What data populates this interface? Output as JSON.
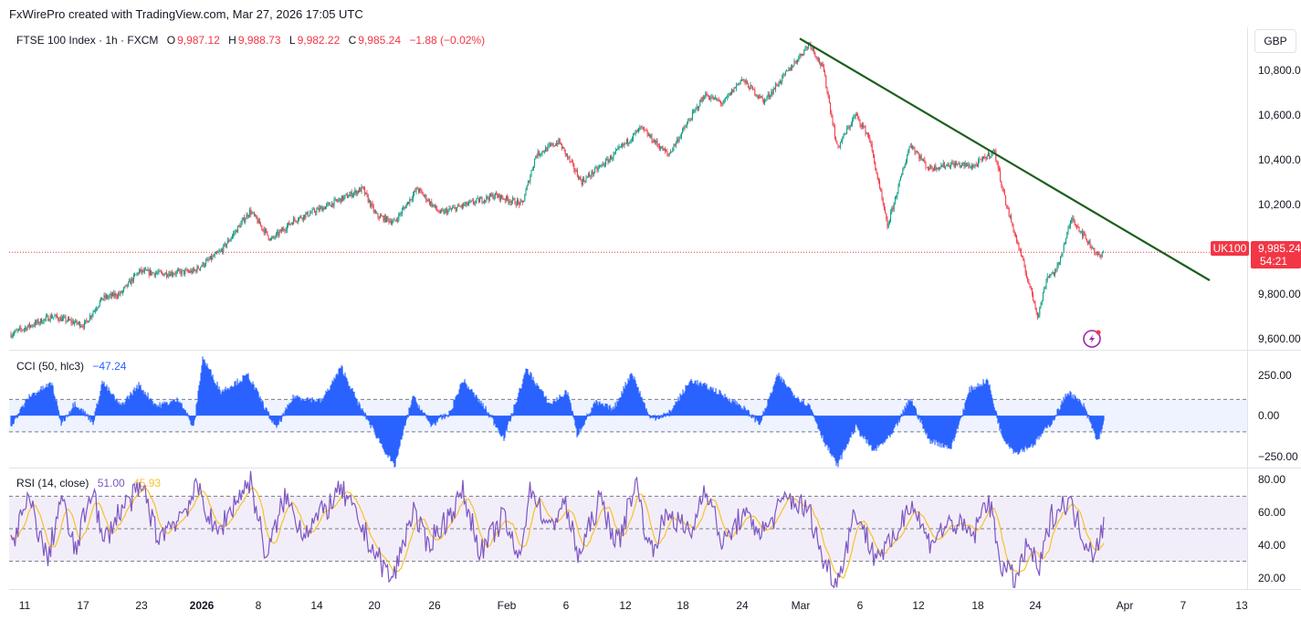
{
  "attribution": "FxWirePro created with TradingView.com, Mar 27, 2026 17:05 UTC",
  "legend": {
    "symbol": "FTSE 100 Index · 1h · FXCM",
    "o_label": "O",
    "o_value": "9,987.12",
    "h_label": "H",
    "h_value": "9,988.73",
    "l_label": "L",
    "l_value": "9,982.22",
    "c_label": "C",
    "c_value": "9,985.24",
    "change": "−1.88 (−0.02%)"
  },
  "currency_button": "GBP",
  "price_tag": {
    "symbol": "UK100",
    "price": "9,985.24",
    "countdown": "54:21"
  },
  "cci": {
    "label": "CCI (50, hlc3)",
    "value": "−47.24"
  },
  "rsi": {
    "label": "RSI (14, close)",
    "value": "51.00",
    "ma_value": "45.93"
  },
  "colors": {
    "up": "#089981",
    "down": "#f23645",
    "trendline": "#1e5e1e",
    "cci": "#2962ff",
    "rsi": "#7e57c2",
    "rsi_ma": "#fbc02d",
    "neutral_text": "#2962ff"
  },
  "icons": [
    "lightning-icon"
  ],
  "chart_data": [
    {
      "type": "candlestick",
      "name": "FTSE 100 Index",
      "ylim": [
        9550,
        10990
      ],
      "yticks": [
        "10,800.00",
        "10,600.00",
        "10,400.00",
        "10,200.00",
        "9,800.00",
        "9,600.00"
      ],
      "ytick_values": [
        10800,
        10600,
        10400,
        10200,
        9800,
        9600
      ],
      "last_price": 9985.24,
      "xticks": [
        "11",
        "17",
        "23",
        "2026",
        "8",
        "14",
        "20",
        "26",
        "Feb",
        "6",
        "12",
        "18",
        "24",
        "Mar",
        "6",
        "12",
        "18",
        "24",
        "Apr",
        "7",
        "13"
      ],
      "trendline": {
        "from": {
          "x": "Mar 1",
          "y": 10940
        },
        "to": {
          "x": "Apr 8",
          "y": 9860
        }
      },
      "path": [
        [
          0,
          9620
        ],
        [
          45,
          9700
        ],
        [
          80,
          9660
        ],
        [
          100,
          9780
        ],
        [
          120,
          9800
        ],
        [
          140,
          9900
        ],
        [
          165,
          9890
        ],
        [
          200,
          9900
        ],
        [
          230,
          9990
        ],
        [
          262,
          10170
        ],
        [
          285,
          10040
        ],
        [
          310,
          10130
        ],
        [
          345,
          10190
        ],
        [
          385,
          10270
        ],
        [
          400,
          10150
        ],
        [
          420,
          10120
        ],
        [
          445,
          10270
        ],
        [
          470,
          10160
        ],
        [
          500,
          10200
        ],
        [
          530,
          10240
        ],
        [
          560,
          10200
        ],
        [
          575,
          10420
        ],
        [
          600,
          10480
        ],
        [
          625,
          10300
        ],
        [
          655,
          10400
        ],
        [
          690,
          10540
        ],
        [
          720,
          10420
        ],
        [
          760,
          10690
        ],
        [
          780,
          10650
        ],
        [
          800,
          10760
        ],
        [
          825,
          10660
        ],
        [
          875,
          10920
        ],
        [
          890,
          10800
        ],
        [
          905,
          10450
        ],
        [
          925,
          10600
        ],
        [
          940,
          10500
        ],
        [
          960,
          10100
        ],
        [
          985,
          10470
        ],
        [
          1005,
          10360
        ],
        [
          1030,
          10380
        ],
        [
          1055,
          10370
        ],
        [
          1077,
          10440
        ],
        [
          1090,
          10200
        ],
        [
          1105,
          9990
        ],
        [
          1125,
          9700
        ],
        [
          1135,
          9880
        ],
        [
          1145,
          9900
        ],
        [
          1162,
          10140
        ],
        [
          1180,
          10030
        ],
        [
          1193,
          9960
        ],
        [
          1197,
          9985
        ]
      ]
    },
    {
      "type": "area",
      "name": "CCI (50, hlc3)",
      "ylim": [
        -320,
        400
      ],
      "yticks": [
        "250.00",
        "0.00",
        "−250.00"
      ],
      "ytick_values": [
        250,
        0,
        -250
      ],
      "bands": [
        100,
        -100
      ],
      "last_value": -47.24,
      "path": [
        [
          0,
          -60
        ],
        [
          20,
          120
        ],
        [
          45,
          200
        ],
        [
          55,
          -50
        ],
        [
          70,
          80
        ],
        [
          90,
          -40
        ],
        [
          100,
          210
        ],
        [
          120,
          60
        ],
        [
          140,
          190
        ],
        [
          160,
          60
        ],
        [
          185,
          100
        ],
        [
          200,
          -80
        ],
        [
          210,
          360
        ],
        [
          230,
          150
        ],
        [
          260,
          250
        ],
        [
          290,
          -80
        ],
        [
          310,
          120
        ],
        [
          340,
          90
        ],
        [
          362,
          300
        ],
        [
          380,
          80
        ],
        [
          400,
          -120
        ],
        [
          420,
          -320
        ],
        [
          440,
          120
        ],
        [
          460,
          -60
        ],
        [
          480,
          10
        ],
        [
          495,
          220
        ],
        [
          520,
          40
        ],
        [
          540,
          -140
        ],
        [
          565,
          290
        ],
        [
          590,
          70
        ],
        [
          610,
          150
        ],
        [
          620,
          -120
        ],
        [
          640,
          80
        ],
        [
          660,
          40
        ],
        [
          680,
          270
        ],
        [
          700,
          -20
        ],
        [
          720,
          10
        ],
        [
          745,
          220
        ],
        [
          770,
          160
        ],
        [
          800,
          60
        ],
        [
          820,
          -50
        ],
        [
          840,
          250
        ],
        [
          860,
          120
        ],
        [
          875,
          60
        ],
        [
          890,
          -150
        ],
        [
          905,
          -310
        ],
        [
          925,
          -70
        ],
        [
          945,
          -220
        ],
        [
          965,
          -120
        ],
        [
          985,
          110
        ],
        [
          1005,
          -150
        ],
        [
          1030,
          -200
        ],
        [
          1050,
          160
        ],
        [
          1070,
          220
        ],
        [
          1085,
          -120
        ],
        [
          1100,
          -230
        ],
        [
          1120,
          -180
        ],
        [
          1140,
          -40
        ],
        [
          1158,
          150
        ],
        [
          1175,
          60
        ],
        [
          1190,
          -160
        ],
        [
          1197,
          -47
        ]
      ]
    },
    {
      "type": "line",
      "name": "RSI (14, close)",
      "ylim": [
        13,
        87
      ],
      "yticks": [
        "80.00",
        "60.00",
        "40.00",
        "20.00"
      ],
      "ytick_values": [
        80,
        60,
        40,
        20
      ],
      "bands": [
        70,
        50,
        30
      ],
      "last_value": 51.0,
      "last_ma_value": 45.93,
      "path": [
        [
          0,
          40
        ],
        [
          20,
          68
        ],
        [
          40,
          30
        ],
        [
          55,
          70
        ],
        [
          70,
          35
        ],
        [
          90,
          78
        ],
        [
          100,
          40
        ],
        [
          120,
          62
        ],
        [
          145,
          75
        ],
        [
          160,
          45
        ],
        [
          185,
          58
        ],
        [
          205,
          75
        ],
        [
          225,
          46
        ],
        [
          245,
          66
        ],
        [
          262,
          80
        ],
        [
          280,
          32
        ],
        [
          300,
          70
        ],
        [
          320,
          48
        ],
        [
          345,
          62
        ],
        [
          362,
          74
        ],
        [
          385,
          50
        ],
        [
          400,
          34
        ],
        [
          418,
          18
        ],
        [
          440,
          62
        ],
        [
          455,
          40
        ],
        [
          475,
          54
        ],
        [
          495,
          72
        ],
        [
          515,
          35
        ],
        [
          540,
          58
        ],
        [
          555,
          30
        ],
        [
          570,
          76
        ],
        [
          590,
          48
        ],
        [
          605,
          68
        ],
        [
          622,
          33
        ],
        [
          645,
          68
        ],
        [
          665,
          40
        ],
        [
          684,
          80
        ],
        [
          700,
          36
        ],
        [
          720,
          60
        ],
        [
          745,
          46
        ],
        [
          760,
          78
        ],
        [
          780,
          40
        ],
        [
          800,
          58
        ],
        [
          825,
          48
        ],
        [
          850,
          70
        ],
        [
          875,
          60
        ],
        [
          890,
          30
        ],
        [
          905,
          17
        ],
        [
          925,
          62
        ],
        [
          945,
          34
        ],
        [
          965,
          40
        ],
        [
          985,
          68
        ],
        [
          1005,
          42
        ],
        [
          1030,
          54
        ],
        [
          1055,
          46
        ],
        [
          1070,
          70
        ],
        [
          1085,
          28
        ],
        [
          1100,
          18
        ],
        [
          1115,
          42
        ],
        [
          1125,
          22
        ],
        [
          1140,
          58
        ],
        [
          1158,
          68
        ],
        [
          1175,
          45
        ],
        [
          1185,
          36
        ],
        [
          1197,
          51
        ]
      ]
    }
  ]
}
